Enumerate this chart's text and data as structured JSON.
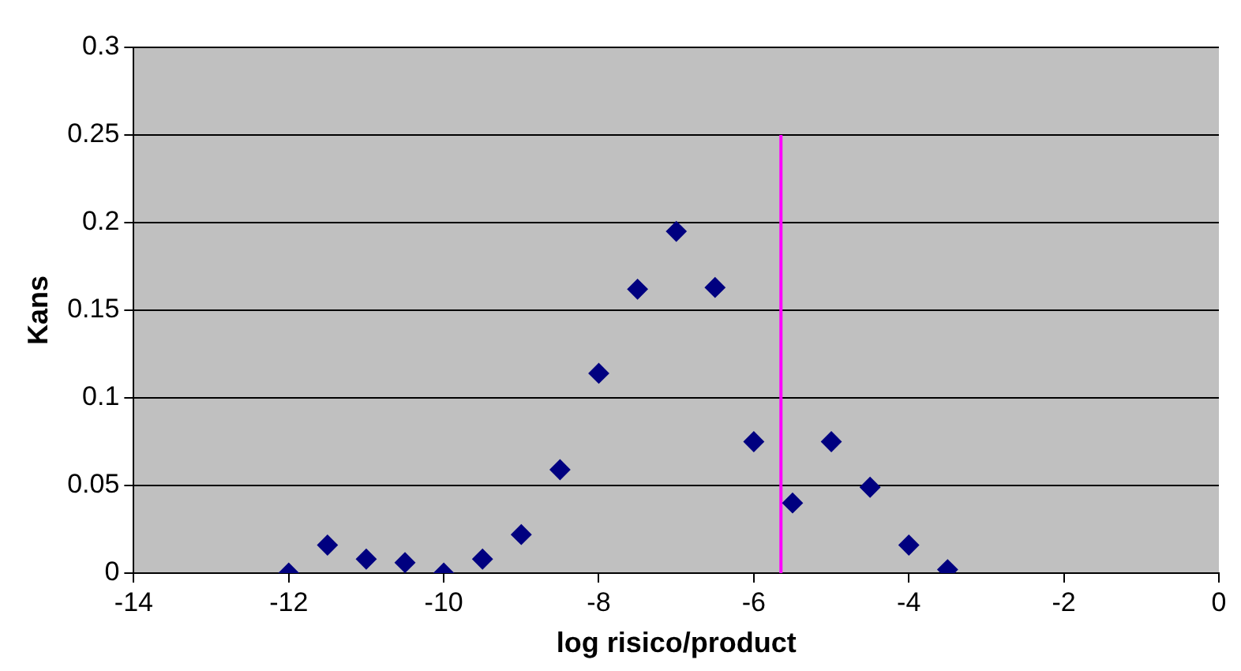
{
  "chart_data": {
    "type": "scatter",
    "xlabel": "log risico/product",
    "ylabel": "Kans",
    "x": [
      -12,
      -11.5,
      -11,
      -10.5,
      -10,
      -9.5,
      -9,
      -8.5,
      -8,
      -7.5,
      -7,
      -6.5,
      -6,
      -5.5,
      -5,
      -4.5,
      -4,
      -3.5
    ],
    "series": [
      {
        "color": "#000080",
        "values": [
          0,
          0.016,
          0.008,
          0.006,
          0,
          0.008,
          0.022,
          0.059,
          0.114,
          0.162,
          0.195,
          0.163,
          0.075,
          0.04,
          0.075,
          0.049,
          0.016,
          0.002
        ]
      },
      {
        "type": "line",
        "color": "#ff00ff",
        "x": [
          -5.65,
          -5.65
        ],
        "values": [
          0,
          0.25
        ],
        "marker": "none"
      }
    ],
    "xlim": [
      -14,
      0
    ],
    "xticks": [
      -14,
      -12,
      -10,
      -8,
      -6,
      -4,
      -2,
      0
    ],
    "ylim": [
      0,
      0.3
    ],
    "yticks": [
      0,
      0.05,
      0.1,
      0.15,
      0.2,
      0.25,
      0.3
    ],
    "grid": "y",
    "legend": false,
    "marker": "diamond"
  }
}
